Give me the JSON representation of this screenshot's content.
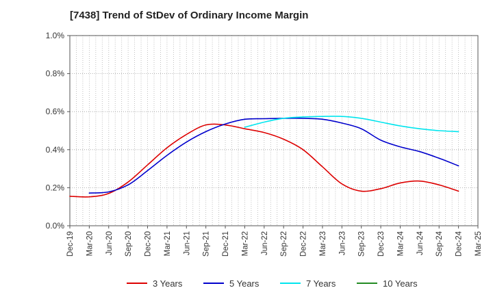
{
  "chart_data": {
    "type": "line",
    "title": "[7438]  Trend of StDev of Ordinary Income Margin",
    "xlabel": "",
    "ylabel": "",
    "x_ticks": [
      "Dec-19",
      "Mar-20",
      "Jun-20",
      "Sep-20",
      "Dec-20",
      "Mar-21",
      "Jun-21",
      "Sep-21",
      "Dec-21",
      "Mar-22",
      "Jun-22",
      "Sep-22",
      "Dec-22",
      "Mar-23",
      "Jun-23",
      "Sep-23",
      "Dec-23",
      "Mar-24",
      "Jun-24",
      "Sep-24",
      "Dec-24",
      "Mar-25"
    ],
    "y_ticks": [
      "0.0%",
      "0.2%",
      "0.4%",
      "0.6%",
      "0.8%",
      "1.0%"
    ],
    "y_tick_values": [
      0.0,
      0.2,
      0.4,
      0.6,
      0.8,
      1.0
    ],
    "ylim": [
      0.0,
      1.0
    ],
    "grid": true,
    "legend_position": "bottom",
    "series": [
      {
        "name": "3 Years",
        "color": "#dd0000",
        "x": [
          "Dec-19",
          "Mar-20",
          "Jun-20",
          "Sep-20",
          "Dec-20",
          "Mar-21",
          "Jun-21",
          "Sep-21",
          "Dec-21",
          "Mar-22",
          "Jun-22",
          "Sep-22",
          "Dec-22",
          "Mar-23",
          "Jun-23",
          "Sep-23",
          "Dec-23",
          "Mar-24",
          "Jun-24",
          "Sep-24",
          "Dec-24"
        ],
        "values": [
          0.155,
          0.152,
          0.17,
          0.23,
          0.32,
          0.41,
          0.48,
          0.53,
          0.53,
          0.51,
          0.49,
          0.455,
          0.4,
          0.31,
          0.22,
          0.182,
          0.195,
          0.225,
          0.235,
          0.215,
          0.182
        ]
      },
      {
        "name": "5 Years",
        "color": "#0000cc",
        "x": [
          "Mar-20",
          "Jun-20",
          "Sep-20",
          "Dec-20",
          "Mar-21",
          "Jun-21",
          "Sep-21",
          "Dec-21",
          "Mar-22",
          "Jun-22",
          "Sep-22",
          "Dec-22",
          "Mar-23",
          "Jun-23",
          "Sep-23",
          "Dec-23",
          "Mar-24",
          "Jun-24",
          "Sep-24",
          "Dec-24"
        ],
        "values": [
          0.172,
          0.178,
          0.215,
          0.29,
          0.37,
          0.44,
          0.495,
          0.535,
          0.56,
          0.563,
          0.565,
          0.565,
          0.56,
          0.54,
          0.51,
          0.45,
          0.415,
          0.39,
          0.355,
          0.315
        ]
      },
      {
        "name": "7 Years",
        "color": "#00e5ee",
        "x": [
          "Mar-22",
          "Jun-22",
          "Sep-22",
          "Dec-22",
          "Mar-23",
          "Jun-23",
          "Sep-23",
          "Dec-23",
          "Mar-24",
          "Jun-24",
          "Sep-24",
          "Dec-24"
        ],
        "values": [
          0.518,
          0.545,
          0.565,
          0.572,
          0.575,
          0.575,
          0.565,
          0.545,
          0.525,
          0.51,
          0.5,
          0.495
        ]
      },
      {
        "name": "10 Years",
        "color": "#228b22",
        "x": [],
        "values": []
      }
    ]
  }
}
